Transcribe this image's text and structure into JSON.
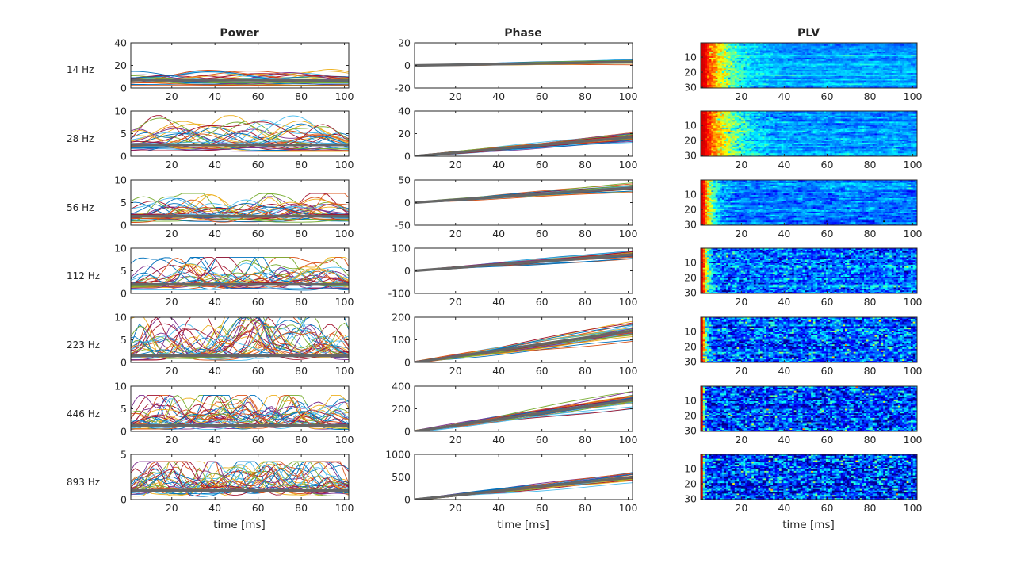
{
  "chart_data": {
    "type": "line",
    "layout": "7 rows x 3 columns small-multiple grid",
    "column_titles": [
      "Power",
      "Phase",
      "PLV"
    ],
    "row_labels": [
      "14 Hz",
      "28 Hz",
      "56 Hz",
      "112 Hz",
      "223 Hz",
      "446 Hz",
      "893 Hz"
    ],
    "xlabel": "time [ms]",
    "xlim": [
      1,
      102
    ],
    "x_ticks": [
      20,
      40,
      60,
      80,
      100
    ],
    "series_colors": [
      "#0072BD",
      "#D95319",
      "#EDB120",
      "#7E2F8E",
      "#77AC30",
      "#4DBEEE",
      "#A2142F"
    ],
    "mean_line_color": "#666666",
    "power": {
      "type": "line",
      "n_trials": 30,
      "ylim": [
        [
          0,
          40
        ],
        [
          0,
          10
        ],
        [
          0,
          10
        ],
        [
          0,
          10
        ],
        [
          0,
          10
        ],
        [
          0,
          10
        ],
        [
          0,
          5
        ]
      ],
      "y_ticks": [
        [
          0,
          20,
          40
        ],
        [
          0,
          5,
          10
        ],
        [
          0,
          5,
          10
        ],
        [
          0,
          5,
          10
        ],
        [
          0,
          5,
          10
        ],
        [
          0,
          5,
          10
        ],
        [
          0,
          5
        ]
      ],
      "mean_level": [
        7,
        2.5,
        2,
        2,
        1.5,
        1.3,
        1
      ],
      "peak_max": [
        20,
        9,
        7,
        8,
        10,
        8,
        4.2
      ]
    },
    "phase": {
      "type": "line",
      "n_trials": 30,
      "ylim": [
        [
          -20,
          20
        ],
        [
          0,
          40
        ],
        [
          -50,
          50
        ],
        [
          -100,
          100
        ],
        [
          0,
          200
        ],
        [
          0,
          400
        ],
        [
          0,
          1000
        ]
      ],
      "y_ticks": [
        [
          -20,
          0,
          20
        ],
        [
          0,
          20,
          40
        ],
        [
          -50,
          0,
          50
        ],
        [
          -100,
          0,
          100
        ],
        [
          0,
          100,
          200
        ],
        [
          0,
          200,
          400
        ],
        [
          0,
          500,
          1000
        ]
      ],
      "end_value": [
        3,
        17,
        33,
        72,
        140,
        280,
        500
      ]
    },
    "plv": {
      "type": "heatmap",
      "colormap": "jet",
      "n_rows": 30,
      "y_ticks": [
        10,
        20,
        30
      ],
      "high_phase_locking_width_ms": [
        12,
        14,
        5,
        3,
        2,
        1,
        1
      ]
    }
  }
}
